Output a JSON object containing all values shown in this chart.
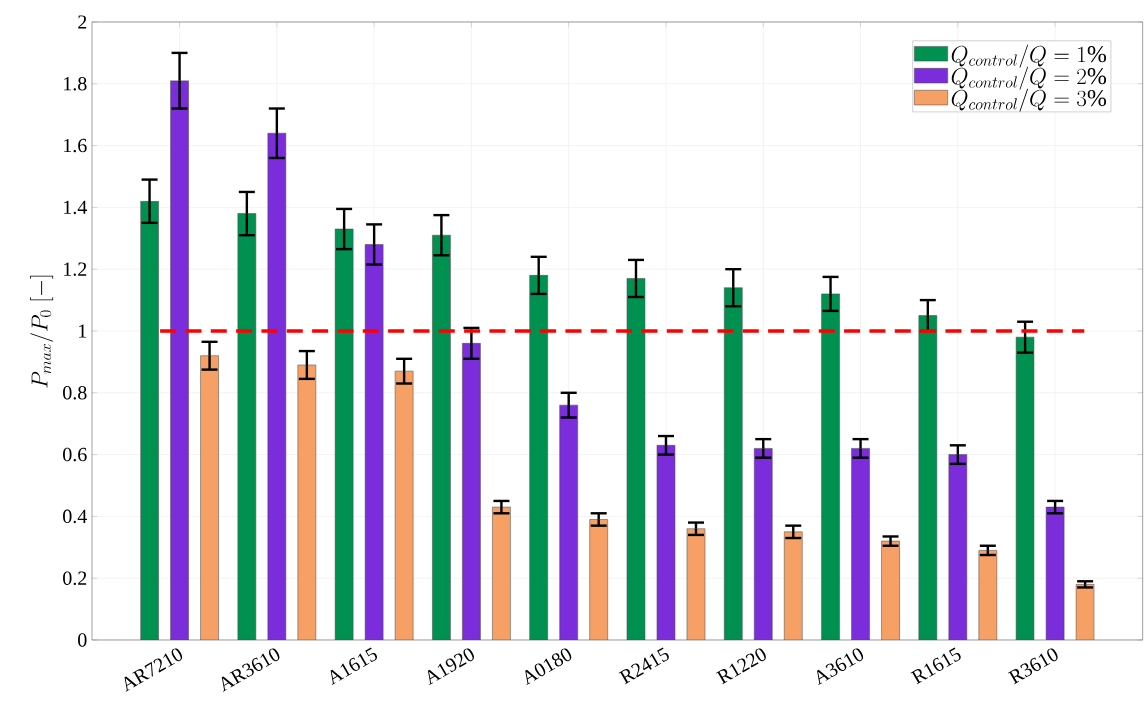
{
  "chart_data": {
    "type": "bar",
    "ylabel": "P_{max}/P_0\\;\\mathrm{[-]}",
    "categories": [
      "AR7210",
      "AR3610",
      "A1615",
      "A1920",
      "A0180",
      "R2415",
      "R1220",
      "A3610",
      "R1615",
      "R3610"
    ],
    "series": [
      {
        "name": "Q_{control}/Q = 1\\%",
        "color": "#009150",
        "values": [
          1.42,
          1.38,
          1.33,
          1.31,
          1.18,
          1.17,
          1.14,
          1.12,
          1.05,
          0.98
        ],
        "errors": [
          0.07,
          0.07,
          0.065,
          0.065,
          0.06,
          0.06,
          0.06,
          0.055,
          0.05,
          0.05
        ]
      },
      {
        "name": "Q_{control}/Q = 2\\%",
        "color": "#7b2cdb",
        "values": [
          1.81,
          1.64,
          1.28,
          0.96,
          0.76,
          0.63,
          0.62,
          0.62,
          0.6,
          0.43
        ],
        "errors": [
          0.09,
          0.08,
          0.065,
          0.05,
          0.04,
          0.03,
          0.03,
          0.03,
          0.03,
          0.02
        ]
      },
      {
        "name": "Q_{control}/Q = 3\\%",
        "color": "#f7a066",
        "values": [
          0.92,
          0.89,
          0.87,
          0.43,
          0.39,
          0.36,
          0.35,
          0.32,
          0.29,
          0.18
        ],
        "errors": [
          0.045,
          0.045,
          0.04,
          0.02,
          0.02,
          0.02,
          0.02,
          0.015,
          0.015,
          0.01
        ]
      }
    ],
    "ylim": [
      0,
      2
    ],
    "yticks": [
      0,
      0.2,
      0.4,
      0.6,
      0.8,
      1,
      1.2,
      1.4,
      1.6,
      1.8,
      2
    ],
    "ref_lines": [
      {
        "axis": "y",
        "value": 1,
        "color": "#ff0000",
        "line_style": "dashed"
      }
    ],
    "grid": true,
    "legend": "top right"
  }
}
